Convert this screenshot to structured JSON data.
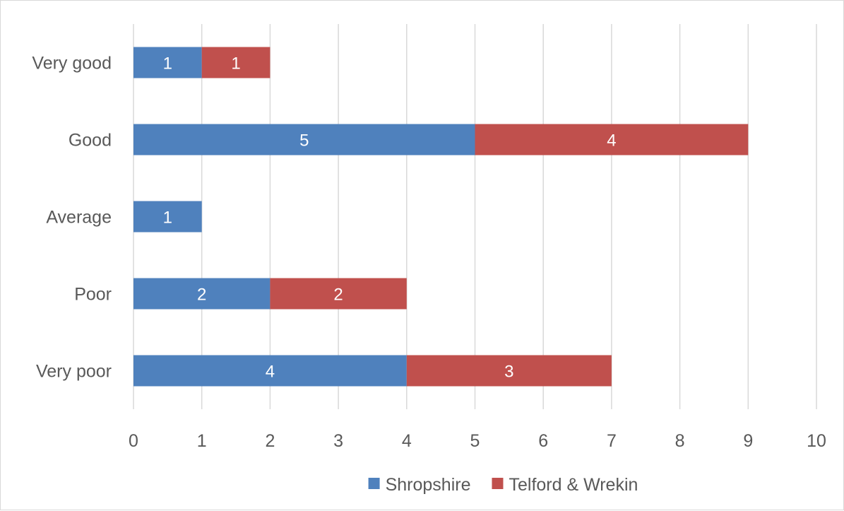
{
  "chart_data": {
    "type": "bar",
    "orientation": "horizontal",
    "stacked": true,
    "categories": [
      "Very good",
      "Good",
      "Average",
      "Poor",
      "Very poor"
    ],
    "series": [
      {
        "name": "Shropshire",
        "color": "#4f81bd",
        "values": [
          1,
          5,
          1,
          2,
          4
        ]
      },
      {
        "name": "Telford & Wrekin",
        "color": "#c0504d",
        "values": [
          1,
          4,
          0,
          2,
          3
        ]
      }
    ],
    "xlim": [
      0,
      10
    ],
    "xticks": [
      "0",
      "1",
      "2",
      "3",
      "4",
      "5",
      "6",
      "7",
      "8",
      "9",
      "10"
    ],
    "title": "",
    "xlabel": "",
    "ylabel": "",
    "grid": "vertical",
    "legend": "bottom"
  }
}
